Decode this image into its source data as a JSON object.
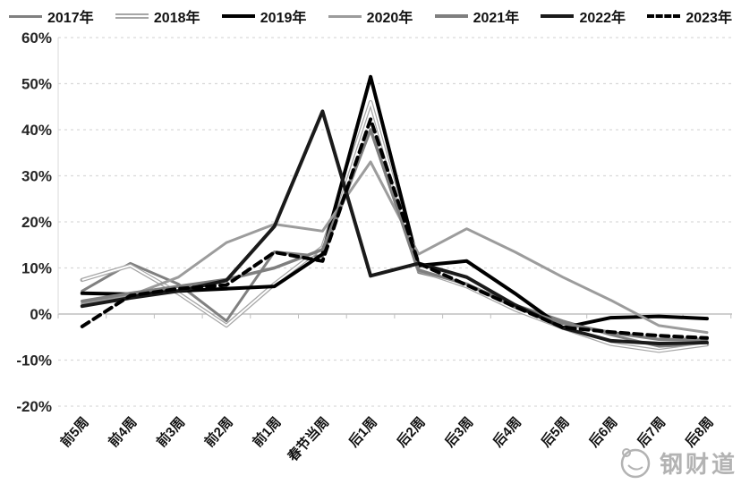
{
  "chart_data": {
    "type": "line",
    "title": "",
    "xlabel": "",
    "ylabel": "",
    "ylim": [
      -20,
      60
    ],
    "yticks": [
      60,
      50,
      40,
      30,
      20,
      10,
      0,
      -10,
      -20
    ],
    "ytick_labels": [
      "60%",
      "50%",
      "40%",
      "30%",
      "20%",
      "10%",
      "0%",
      "-10%",
      "-20%"
    ],
    "grid": "horizontal-dashed",
    "legend_position": "top",
    "categories": [
      "前5周",
      "前4周",
      "前3周",
      "前2周",
      "前1周",
      "春节当周",
      "后1周",
      "后2周",
      "后3周",
      "后4周",
      "后5周",
      "后6周",
      "后7周",
      "后8周"
    ],
    "series": [
      {
        "name": "2017年",
        "color": "#808080",
        "width": 3,
        "style": "solid",
        "values": [
          5,
          11,
          6.5,
          -1.5,
          13.5,
          12.5,
          40,
          9,
          6.5,
          2,
          -1.5,
          -4.5,
          -7,
          -6.5
        ]
      },
      {
        "name": "2018年",
        "color": "#a6a6a6",
        "width": 4.5,
        "style": "outline",
        "values": [
          7.4,
          10.5,
          4.5,
          -2.5,
          6.5,
          14.5,
          46,
          9.5,
          6,
          1,
          -3,
          -6.5,
          -8,
          -6.6
        ]
      },
      {
        "name": "2019年",
        "color": "#000000",
        "width": 4,
        "style": "solid",
        "values": [
          4.5,
          4.3,
          5,
          5.5,
          6,
          13,
          51.5,
          10.5,
          11.5,
          4.5,
          -3,
          -0.8,
          -0.5,
          -1
        ]
      },
      {
        "name": "2020年",
        "color": "#9c9c9c",
        "width": 3,
        "style": "solid",
        "values": [
          2.3,
          4,
          8,
          15.5,
          19.5,
          18,
          33,
          13,
          18.5,
          13.5,
          8,
          3,
          -2.5,
          -4
        ]
      },
      {
        "name": "2021年",
        "color": "#7f7f7f",
        "width": 3.5,
        "style": "solid",
        "values": [
          2.8,
          4.5,
          6,
          7.5,
          10,
          14,
          40,
          9.5,
          6.5,
          1.5,
          -2,
          -4,
          -5.5,
          -5.5
        ]
      },
      {
        "name": "2022年",
        "color": "#1a1a1a",
        "width": 4,
        "style": "solid",
        "values": [
          1.7,
          3.5,
          5,
          7.3,
          19,
          44,
          8.3,
          11,
          8,
          2,
          -3,
          -5.8,
          -6.4,
          -6.2
        ]
      },
      {
        "name": "2023年",
        "color": "#000000",
        "width": 4,
        "style": "dashed",
        "values": [
          -2.7,
          4,
          5.5,
          6.3,
          13.4,
          11.5,
          42.3,
          11,
          6.3,
          1.6,
          -2.9,
          -3.9,
          -4.7,
          -5.2
        ]
      }
    ],
    "axis_color": "#bfbfbf",
    "gridline_color": "#d9d9d9",
    "tick_label_color": "#262626"
  },
  "watermark": {
    "text": "钢财道",
    "color": "#b3b3b3"
  }
}
